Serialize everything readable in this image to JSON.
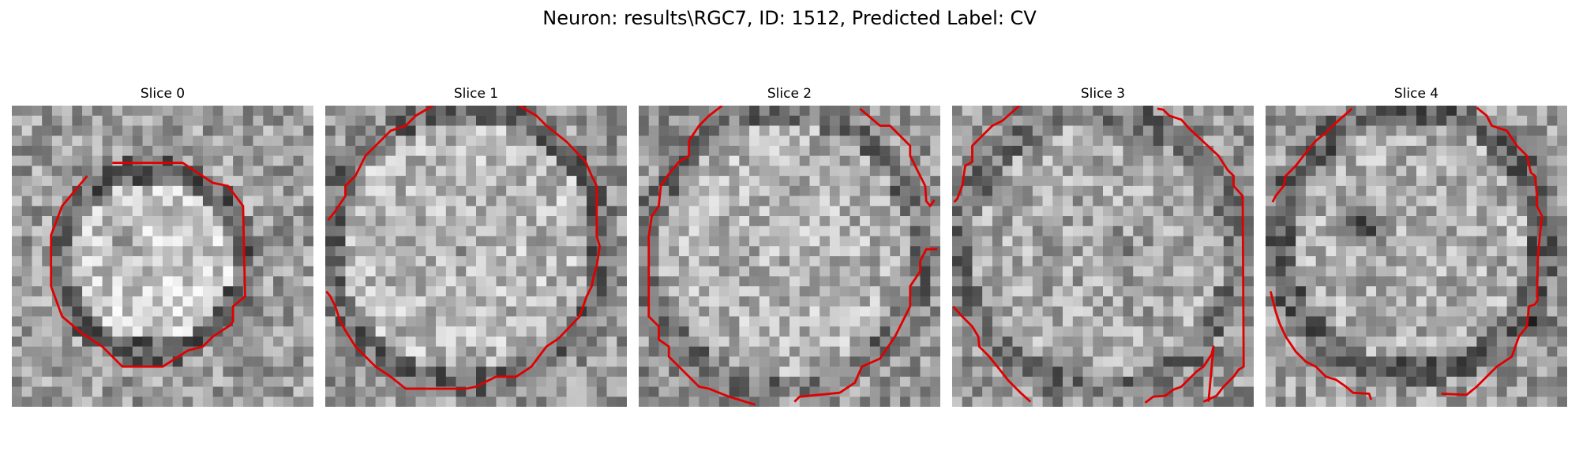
{
  "figure": {
    "title": "Neuron: results\\RGC7, ID: 1512, Predicted Label: CV",
    "contour_color": "#e00000",
    "colormap": "grayscale",
    "panels": [
      {
        "title": "Slice 0",
        "seed": 11
      },
      {
        "title": "Slice 1",
        "seed": 23
      },
      {
        "title": "Slice 2",
        "seed": 37
      },
      {
        "title": "Slice 3",
        "seed": 41
      },
      {
        "title": "Slice 4",
        "seed": 59
      }
    ]
  }
}
